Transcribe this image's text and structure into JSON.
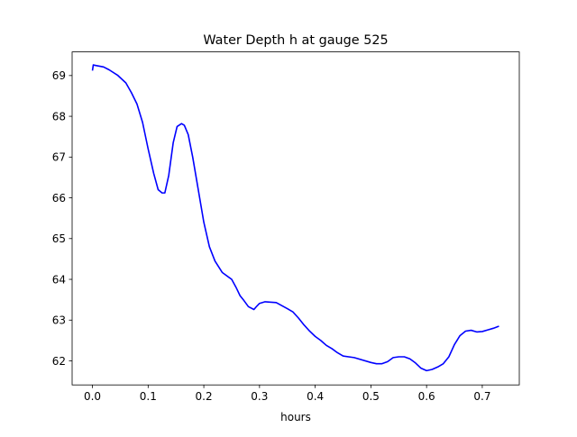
{
  "chart_data": {
    "type": "line",
    "title": "Water Depth h at gauge 525",
    "xlabel": "hours",
    "ylabel": "",
    "xlim": [
      -0.0365,
      0.7665
    ],
    "ylim": [
      61.41,
      69.58
    ],
    "xticks": [
      0.0,
      0.1,
      0.2,
      0.3,
      0.4,
      0.5,
      0.6,
      0.7
    ],
    "xtick_labels": [
      "0.0",
      "0.1",
      "0.2",
      "0.3",
      "0.4",
      "0.5",
      "0.6",
      "0.7"
    ],
    "yticks": [
      62,
      63,
      64,
      65,
      66,
      67,
      68,
      69
    ],
    "ytick_labels": [
      "62",
      "63",
      "64",
      "65",
      "66",
      "67",
      "68",
      "69"
    ],
    "grid": false,
    "series": [
      {
        "color": "#0000ff",
        "x": [
          0.0,
          0.0015,
          0.005,
          0.02,
          0.03,
          0.045,
          0.06,
          0.07,
          0.08,
          0.09,
          0.1,
          0.11,
          0.118,
          0.125,
          0.13,
          0.137,
          0.145,
          0.152,
          0.16,
          0.165,
          0.172,
          0.18,
          0.19,
          0.2,
          0.21,
          0.22,
          0.233,
          0.25,
          0.258,
          0.265,
          0.272,
          0.28,
          0.29,
          0.295,
          0.3,
          0.31,
          0.33,
          0.35,
          0.36,
          0.37,
          0.38,
          0.39,
          0.4,
          0.41,
          0.42,
          0.43,
          0.44,
          0.45,
          0.47,
          0.5,
          0.51,
          0.52,
          0.53,
          0.535,
          0.54,
          0.55,
          0.56,
          0.57,
          0.58,
          0.59,
          0.6,
          0.61,
          0.62,
          0.63,
          0.64,
          0.65,
          0.66,
          0.67,
          0.68,
          0.69,
          0.7,
          0.71,
          0.72,
          0.73
        ],
        "y": [
          69.12,
          69.26,
          69.25,
          69.21,
          69.14,
          69.01,
          68.82,
          68.58,
          68.3,
          67.85,
          67.2,
          66.6,
          66.2,
          66.12,
          66.12,
          66.55,
          67.35,
          67.75,
          67.82,
          67.78,
          67.55,
          67.0,
          66.2,
          65.4,
          64.8,
          64.45,
          64.17,
          64.0,
          63.8,
          63.6,
          63.48,
          63.33,
          63.26,
          63.34,
          63.41,
          63.45,
          63.43,
          63.28,
          63.2,
          63.05,
          62.88,
          62.73,
          62.6,
          62.5,
          62.38,
          62.3,
          62.2,
          62.12,
          62.08,
          61.96,
          61.93,
          61.93,
          61.98,
          62.03,
          62.08,
          62.1,
          62.1,
          62.05,
          61.95,
          61.82,
          61.76,
          61.79,
          61.85,
          61.93,
          62.1,
          62.4,
          62.62,
          62.73,
          62.75,
          62.71,
          62.72,
          62.76,
          62.8,
          62.85
        ]
      }
    ]
  }
}
